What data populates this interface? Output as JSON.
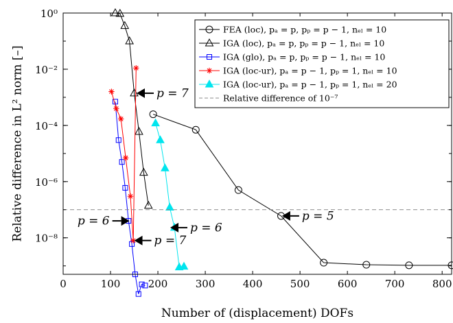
{
  "chart_data": {
    "type": "line",
    "title": "",
    "xlabel": "Number of (displacement) DOFs",
    "ylabel": "Relative difference in L² norm [–]",
    "xlim": [
      0,
      820
    ],
    "ylim_log10": [
      -9.3,
      0
    ],
    "yscale": "log",
    "x_ticks": [
      0,
      100,
      200,
      300,
      400,
      500,
      600,
      700,
      800
    ],
    "x_tick_labels": [
      "0",
      "100",
      "200",
      "300",
      "400",
      "500",
      "600",
      "700",
      "800"
    ],
    "y_ticks_log10": [
      0,
      -2,
      -4,
      -6,
      -8
    ],
    "y_tick_labels": [
      "10⁰",
      "10⁻²",
      "10⁻⁴",
      "10⁻⁶",
      "10⁻⁸"
    ],
    "grid": false,
    "legend_position": "top-right",
    "series": [
      {
        "name": "FEA (loc), pₐ = p, pₚ = p − 1, nₑₗ = 10",
        "color": "#000000",
        "marker": "circle-open",
        "x": [
          190,
          280,
          370,
          460,
          550,
          640,
          730,
          820
        ],
        "y": [
          0.00025,
          7e-05,
          5e-07,
          6e-08,
          1.3e-09,
          1.1e-09,
          1.05e-09,
          1.05e-09
        ]
      },
      {
        "name": "IGA (loc), pₐ = p, pₚ = p − 1, nₑₗ = 10",
        "color": "#000000",
        "marker": "triangle-open",
        "x": [
          110,
          120,
          130,
          140,
          150,
          160,
          170,
          180
        ],
        "y": [
          1.0,
          0.95,
          0.35,
          0.1,
          0.0014,
          6e-05,
          2.1e-06,
          1.4e-07
        ]
      },
      {
        "name": "IGA (glo), pₐ = p, pₚ = p − 1, nₑₗ = 10",
        "color": "#0000ff",
        "marker": "square-open",
        "x": [
          110,
          117,
          124,
          131,
          138,
          145,
          152,
          159,
          166,
          173
        ],
        "y": [
          0.0007,
          3e-05,
          5e-06,
          6e-07,
          4e-08,
          6e-09,
          5e-10,
          1e-10,
          2.2e-10,
          2e-10
        ]
      },
      {
        "name": "IGA (loc-ur), pₐ = p − 1, pₚ = 1, nₑₗ = 10",
        "color": "#ff0000",
        "marker": "asterisk",
        "x": [
          102,
          112,
          122,
          132,
          142,
          148,
          154
        ],
        "y": [
          0.0016,
          0.0004,
          0.00017,
          7e-06,
          3e-07,
          8e-09,
          0.011
        ]
      },
      {
        "name": "IGA (loc-ur), pₐ = p − 1, pₚ = 1, nₑₗ = 20",
        "color": "#00e5ee",
        "marker": "triangle-filled",
        "x": [
          195,
          205,
          215,
          225,
          235,
          245,
          255
        ],
        "y": [
          0.00012,
          3e-05,
          3e-06,
          1.2e-07,
          2.3e-08,
          9e-10,
          9.5e-10
        ]
      },
      {
        "name": "Relative difference of 10⁻⁷",
        "color": "#888888",
        "marker": "none",
        "dashed": true,
        "x": [
          0,
          820
        ],
        "y": [
          1e-07,
          1e-07
        ]
      }
    ],
    "annotations": [
      {
        "text": "p = 7",
        "x": 155,
        "y": 0.0014,
        "arrow": "left"
      },
      {
        "text": "p = 5",
        "x": 462,
        "y": 6e-08,
        "arrow": "left"
      },
      {
        "text": "p = 6",
        "x": 140,
        "y": 4e-08,
        "arrow": "right"
      },
      {
        "text": "p = 6",
        "x": 226,
        "y": 2.3e-08,
        "arrow": "left"
      },
      {
        "text": "p = 7",
        "x": 150,
        "y": 8e-09,
        "arrow": "left"
      }
    ]
  }
}
